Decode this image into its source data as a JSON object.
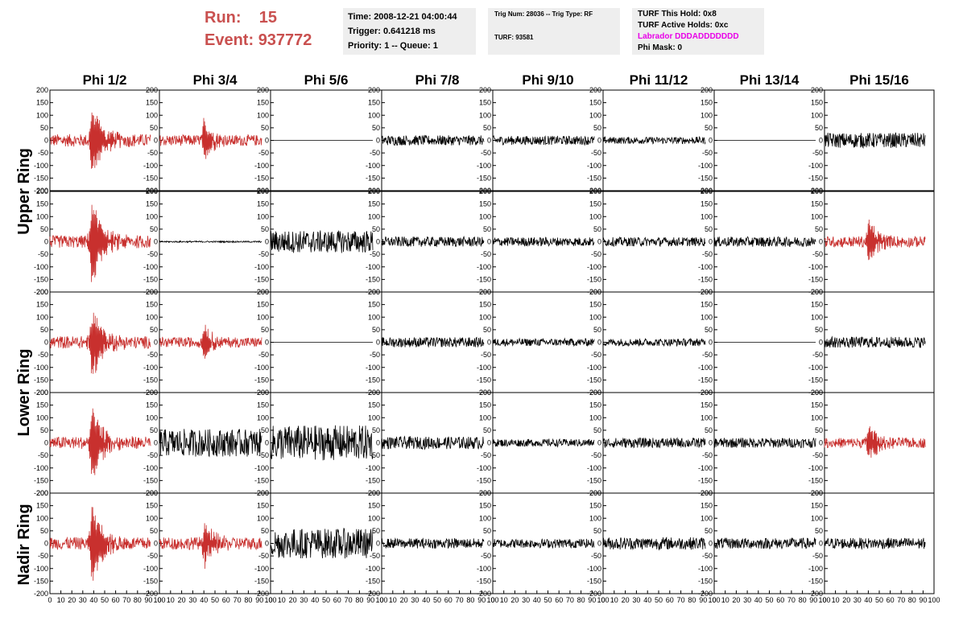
{
  "header": {
    "run_label": "Run:",
    "run_value": "15",
    "event_label": "Event:",
    "event_value": "937772"
  },
  "info_boxes": {
    "time": "Time: 2008-12-21 04:00:44",
    "trigger": "Trigger: 0.641218 ms",
    "priority": "Priority: 1 -- Queue: 1",
    "trig_num": "Trig Num: 28036 -- Trig Type: RF",
    "turf": "TURF: 93581",
    "turf_this_hold": "TURF This Hold: 0x8",
    "turf_active_holds": "TURF Active Holds: 0xc",
    "labrador": "Labrador DDDADDDDDDD",
    "phi_mask": "Phi Mask: 0"
  },
  "colors": {
    "triggered": "#c8302e",
    "normal": "#000000",
    "header_red": "#c9504f",
    "labrador": "#e800e8",
    "info_bg": "#eeeeee"
  },
  "chart_data": {
    "type": "line",
    "description_grid": "5 rows x 8 columns of waveform panels",
    "columns": [
      "Phi 1/2",
      "Phi 3/4",
      "Phi 5/6",
      "Phi 7/8",
      "Phi 9/10",
      "Phi 11/12",
      "Phi 13/14",
      "Phi 15/16"
    ],
    "ring_labels": [
      "Upper Ring",
      "Lower Ring",
      "Nadir Ring"
    ],
    "xlim": [
      0,
      100
    ],
    "ylim": [
      -200,
      200
    ],
    "x_ticks": [
      "0",
      "10",
      "20",
      "30",
      "40",
      "50",
      "60",
      "70",
      "80",
      "90",
      "100"
    ],
    "y_ticks": [
      "200",
      "150",
      "100",
      "50",
      "0",
      "-50",
      "-100",
      "-150",
      "-200"
    ],
    "panels": [
      [
        {
          "red": true,
          "amp": 25,
          "peak": 150,
          "pc": 38,
          "w": 9
        },
        {
          "red": true,
          "amp": 22,
          "peak": 85,
          "pc": 40,
          "w": 7
        },
        {
          "red": false,
          "amp": 0,
          "peak": 0,
          "pc": 0,
          "w": 0
        },
        {
          "red": false,
          "amp": 20,
          "peak": 0,
          "pc": 0,
          "w": 0
        },
        {
          "red": false,
          "amp": 18,
          "peak": 0,
          "pc": 0,
          "w": 0
        },
        {
          "red": false,
          "amp": 14,
          "peak": 0,
          "pc": 0,
          "w": 0
        },
        {
          "red": false,
          "amp": 0,
          "peak": 0,
          "pc": 0,
          "w": 0
        },
        {
          "red": false,
          "amp": 30,
          "peak": 0,
          "pc": 0,
          "w": 0
        }
      ],
      [
        {
          "red": true,
          "amp": 25,
          "peak": 190,
          "pc": 38,
          "w": 9
        },
        {
          "red": false,
          "amp": 3,
          "peak": 0,
          "pc": 0,
          "w": 0
        },
        {
          "red": false,
          "amp": 45,
          "peak": 0,
          "pc": 0,
          "w": 0
        },
        {
          "red": false,
          "amp": 20,
          "peak": 0,
          "pc": 0,
          "w": 0
        },
        {
          "red": false,
          "amp": 18,
          "peak": 0,
          "pc": 0,
          "w": 0
        },
        {
          "red": false,
          "amp": 18,
          "peak": 0,
          "pc": 0,
          "w": 0
        },
        {
          "red": false,
          "amp": 20,
          "peak": 0,
          "pc": 0,
          "w": 0
        },
        {
          "red": true,
          "amp": 22,
          "peak": 90,
          "pc": 40,
          "w": 8
        }
      ],
      [
        {
          "red": true,
          "amp": 25,
          "peak": 150,
          "pc": 38,
          "w": 9
        },
        {
          "red": true,
          "amp": 20,
          "peak": 75,
          "pc": 40,
          "w": 7
        },
        {
          "red": false,
          "amp": 0,
          "peak": 0,
          "pc": 0,
          "w": 0
        },
        {
          "red": false,
          "amp": 20,
          "peak": 0,
          "pc": 0,
          "w": 0
        },
        {
          "red": false,
          "amp": 15,
          "peak": 0,
          "pc": 0,
          "w": 0
        },
        {
          "red": false,
          "amp": 15,
          "peak": 0,
          "pc": 0,
          "w": 0
        },
        {
          "red": false,
          "amp": 0,
          "peak": 0,
          "pc": 0,
          "w": 0
        },
        {
          "red": false,
          "amp": 22,
          "peak": 0,
          "pc": 0,
          "w": 0
        }
      ],
      [
        {
          "red": true,
          "amp": 25,
          "peak": 150,
          "pc": 38,
          "w": 9
        },
        {
          "red": false,
          "amp": 55,
          "peak": 0,
          "pc": 0,
          "w": 0
        },
        {
          "red": false,
          "amp": 70,
          "peak": 0,
          "pc": 0,
          "w": 0
        },
        {
          "red": false,
          "amp": 25,
          "peak": 0,
          "pc": 0,
          "w": 0
        },
        {
          "red": false,
          "amp": 15,
          "peak": 0,
          "pc": 0,
          "w": 0
        },
        {
          "red": false,
          "amp": 20,
          "peak": 0,
          "pc": 0,
          "w": 0
        },
        {
          "red": false,
          "amp": 20,
          "peak": 0,
          "pc": 0,
          "w": 0
        },
        {
          "red": true,
          "amp": 20,
          "peak": 75,
          "pc": 40,
          "w": 8
        }
      ],
      [
        {
          "red": true,
          "amp": 25,
          "peak": 170,
          "pc": 38,
          "w": 9
        },
        {
          "red": true,
          "amp": 25,
          "peak": 90,
          "pc": 40,
          "w": 8
        },
        {
          "red": false,
          "amp": 60,
          "peak": 0,
          "pc": 0,
          "w": 0
        },
        {
          "red": false,
          "amp": 20,
          "peak": 0,
          "pc": 0,
          "w": 0
        },
        {
          "red": false,
          "amp": 18,
          "peak": 0,
          "pc": 0,
          "w": 0
        },
        {
          "red": false,
          "amp": 25,
          "peak": 0,
          "pc": 0,
          "w": 0
        },
        {
          "red": false,
          "amp": 22,
          "peak": 0,
          "pc": 0,
          "w": 0
        },
        {
          "red": false,
          "amp": 22,
          "peak": 0,
          "pc": 0,
          "w": 0
        }
      ]
    ]
  }
}
